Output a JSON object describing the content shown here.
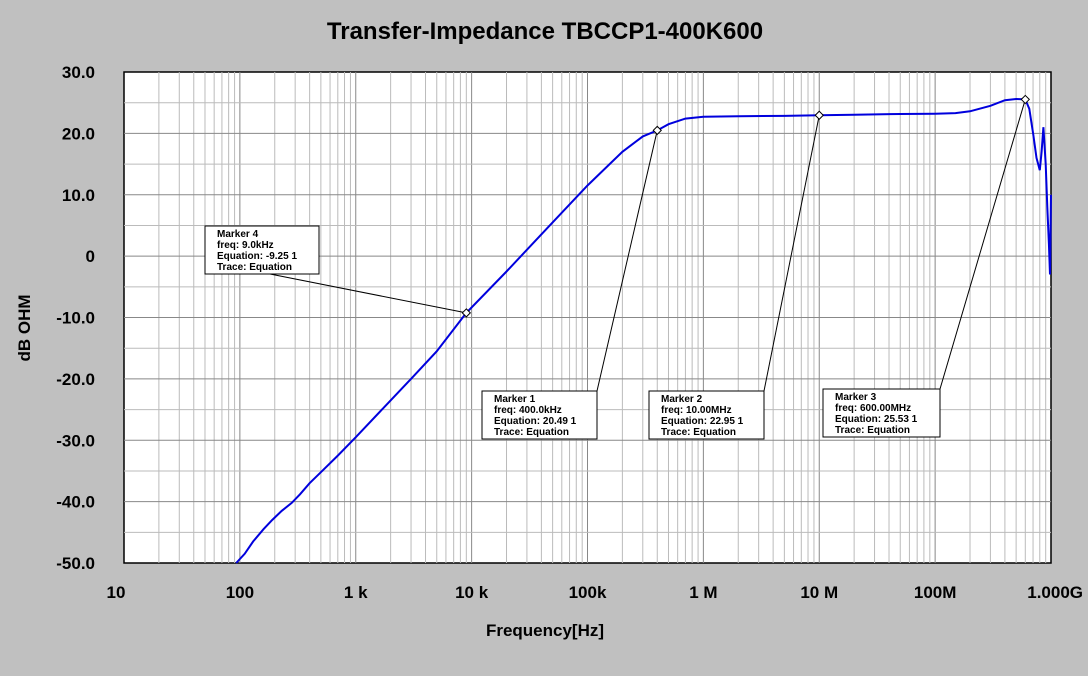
{
  "chart_data": {
    "type": "line",
    "title": "Transfer-Impedance TBCCP1-400K600",
    "xlabel": "Frequency[Hz]",
    "ylabel": "dB OHM",
    "xscale": "log",
    "xlim": [
      10,
      1000000000
    ],
    "ylim": [
      -50,
      30
    ],
    "grid": true,
    "x_ticks": [
      {
        "value": 10,
        "label": "10"
      },
      {
        "value": 100,
        "label": "100"
      },
      {
        "value": 1000,
        "label": "1  k"
      },
      {
        "value": 10000,
        "label": "10 k"
      },
      {
        "value": 100000,
        "label": "100k"
      },
      {
        "value": 1000000,
        "label": "1  M"
      },
      {
        "value": 10000000,
        "label": "10 M"
      },
      {
        "value": 100000000,
        "label": "100M"
      },
      {
        "value": 1000000000,
        "label": "1.000G"
      }
    ],
    "y_ticks": [
      {
        "value": 30,
        "label": "30.0"
      },
      {
        "value": 20,
        "label": "20.0"
      },
      {
        "value": 10,
        "label": "10.0"
      },
      {
        "value": 0,
        "label": "0"
      },
      {
        "value": -10,
        "label": "-10.0"
      },
      {
        "value": -20,
        "label": "-20.0"
      },
      {
        "value": -30,
        "label": "-30.0"
      },
      {
        "value": -40,
        "label": "-40.0"
      },
      {
        "value": -50,
        "label": "-50.0"
      }
    ],
    "series": [
      {
        "color": "#0000dd",
        "x": [
          93,
          110,
          130,
          160,
          190,
          230,
          280,
          330,
          400,
          500,
          700,
          1000,
          2000,
          3000,
          5000,
          9000,
          20000,
          50000,
          100000,
          200000,
          300000,
          400000,
          500000,
          700000,
          1000000,
          2000000,
          5000000,
          10000000,
          20000000,
          50000000,
          100000000,
          150000000,
          200000000,
          300000000,
          400000000,
          500000000,
          600000000,
          650000000,
          700000000,
          750000000,
          800000000,
          830000000,
          860000000,
          900000000,
          930000000,
          960000000,
          980000000,
          1000000000
        ],
        "y": [
          -50,
          -48.5,
          -46.5,
          -44.5,
          -43,
          -41.5,
          -40.2,
          -38.8,
          -37,
          -35.2,
          -32.5,
          -29.5,
          -23.5,
          -20,
          -15.5,
          -9.25,
          -2.5,
          5.5,
          11.5,
          17,
          19.5,
          20.49,
          21.5,
          22.4,
          22.7,
          22.8,
          22.85,
          22.95,
          23.05,
          23.15,
          23.2,
          23.3,
          23.6,
          24.5,
          25.4,
          25.6,
          25.53,
          24,
          20,
          16,
          14,
          17,
          21,
          15,
          8,
          2,
          -3,
          10
        ]
      }
    ],
    "markers": [
      {
        "name": "Marker 4",
        "freq_text": "freq: 9.0kHz",
        "equation": "Equation: -9.25 1",
        "trace": "Trace: Equation",
        "x": 9000,
        "y": -9.25
      },
      {
        "name": "Marker 1",
        "freq_text": "freq: 400.0kHz",
        "equation": "Equation: 20.49 1",
        "trace": "Trace: Equation",
        "x": 400000,
        "y": 20.49
      },
      {
        "name": "Marker 2",
        "freq_text": "freq: 10.00MHz",
        "equation": "Equation: 22.95 1",
        "trace": "Trace: Equation",
        "x": 10000000,
        "y": 22.95
      },
      {
        "name": "Marker 3",
        "freq_text": "freq: 600.00MHz",
        "equation": "Equation: 25.53 1",
        "trace": "Trace: Equation",
        "x": 600000000,
        "y": 25.53
      }
    ]
  }
}
